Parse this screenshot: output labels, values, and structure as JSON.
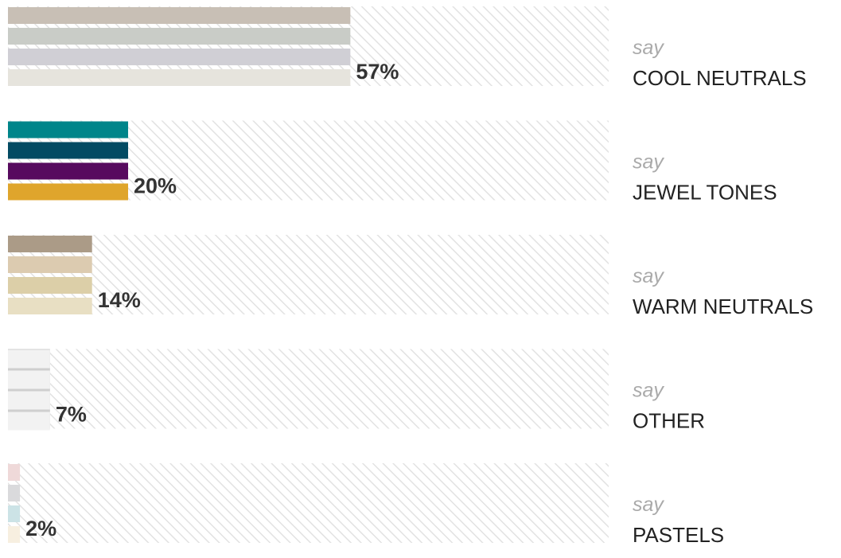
{
  "chart_data": {
    "type": "bar",
    "categories": [
      "COOL NEUTRALS",
      "JEWEL TONES",
      "WARM NEUTRALS",
      "OTHER",
      "PASTELS"
    ],
    "category_prefix": "say",
    "values": [
      57,
      20,
      14,
      7,
      2
    ],
    "value_labels": [
      "57%",
      "20%",
      "14%",
      "7%",
      "2%"
    ],
    "colors": [
      [
        "#c8bfb5",
        "#c9ccc7",
        "#d0cfd5",
        "#e6e4dd"
      ],
      [
        "#00858a",
        "#034b63",
        "#570a5e",
        "#dfa52c"
      ],
      [
        "#ab9b87",
        "#dccbb0",
        "#dccfa8",
        "#e8dfc3"
      ],
      [
        "#f2f2f2",
        "#f2f2f2",
        "#f2f2f2",
        "#f2f2f2"
      ],
      [
        "#efd9d9",
        "#dadadc",
        "#cce3e6",
        "#f7efe0"
      ]
    ],
    "xlim": [
      0,
      100
    ]
  }
}
